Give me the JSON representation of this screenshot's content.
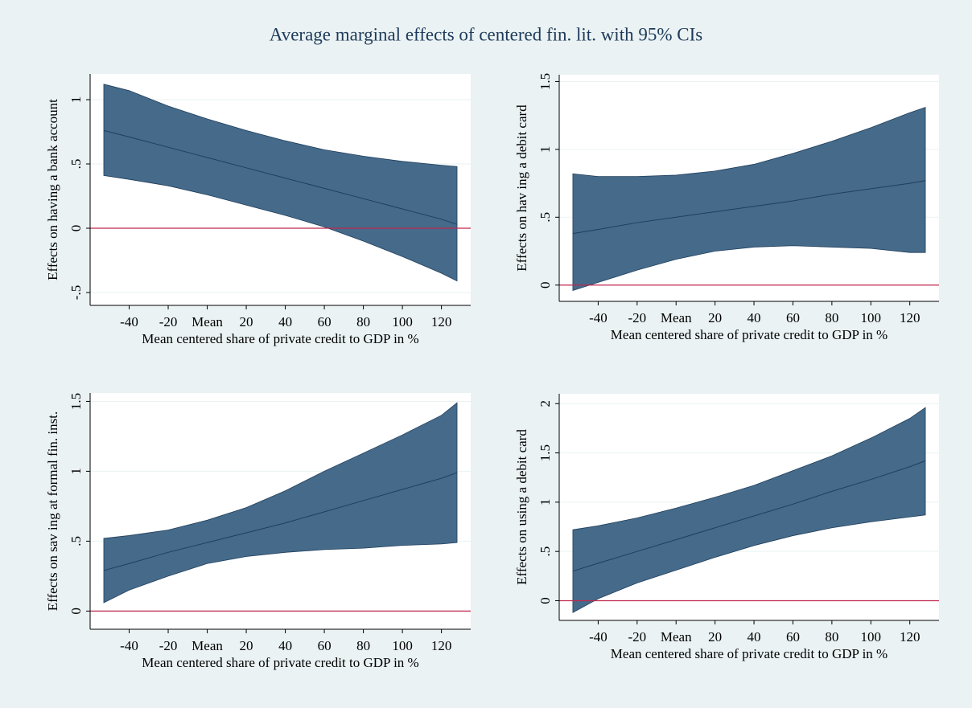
{
  "title": "Average marginal effects of centered fin. lit. with 95% CIs",
  "chart_data": [
    {
      "type": "ci-band",
      "x_label": "Mean centered share of private credit to GDP in %",
      "y_label": "Effects on having a bank account",
      "x": [
        -53,
        -40,
        -20,
        0,
        20,
        40,
        60,
        80,
        100,
        120,
        128
      ],
      "estimate": [
        0.76,
        0.71,
        0.63,
        0.55,
        0.47,
        0.39,
        0.31,
        0.23,
        0.15,
        0.07,
        0.03
      ],
      "upper": [
        1.12,
        1.07,
        0.95,
        0.85,
        0.76,
        0.68,
        0.61,
        0.56,
        0.52,
        0.49,
        0.48
      ],
      "lower": [
        0.41,
        0.38,
        0.33,
        0.26,
        0.18,
        0.1,
        0.01,
        -0.1,
        -0.22,
        -0.35,
        -0.41
      ],
      "xlim": [
        -60,
        135
      ],
      "ylim": [
        -0.6,
        1.2
      ],
      "xticks": [
        -40,
        -20,
        {
          "value": 0,
          "label": "Mean"
        },
        20,
        40,
        60,
        80,
        100,
        120
      ],
      "yticks": [
        {
          "value": -0.5,
          "label": "-.5"
        },
        0,
        {
          "value": 0.5,
          "label": ".5"
        },
        1
      ],
      "reference_line": 0,
      "band_color": "#456a8a",
      "line_color": "#213f5c",
      "reference_color": "#c0284d",
      "grid": true
    },
    {
      "type": "ci-band",
      "x_label": "Mean centered share of private credit to GDP in %",
      "y_label": "Effects on hav ing a debit card",
      "x": [
        -53,
        -40,
        -20,
        0,
        20,
        40,
        60,
        80,
        100,
        120,
        128
      ],
      "estimate": [
        0.38,
        0.41,
        0.46,
        0.5,
        0.54,
        0.58,
        0.62,
        0.67,
        0.71,
        0.75,
        0.77
      ],
      "upper": [
        0.82,
        0.8,
        0.8,
        0.81,
        0.84,
        0.89,
        0.97,
        1.06,
        1.16,
        1.27,
        1.31
      ],
      "lower": [
        -0.04,
        0.02,
        0.11,
        0.19,
        0.25,
        0.28,
        0.29,
        0.28,
        0.27,
        0.24,
        0.24
      ],
      "xlim": [
        -60,
        135
      ],
      "ylim": [
        -0.12,
        1.55
      ],
      "xticks": [
        -40,
        -20,
        {
          "value": 0,
          "label": "Mean"
        },
        20,
        40,
        60,
        80,
        100,
        120
      ],
      "yticks": [
        0,
        {
          "value": 0.5,
          "label": ".5"
        },
        1,
        1.5
      ],
      "reference_line": 0,
      "band_color": "#456a8a",
      "line_color": "#213f5c",
      "reference_color": "#c0284d",
      "grid": true
    },
    {
      "type": "ci-band",
      "x_label": "Mean centered share of private credit to GDP in %",
      "y_label": "Effects on sav ing at formal fin. inst.",
      "x": [
        -53,
        -40,
        -20,
        0,
        20,
        40,
        60,
        80,
        100,
        120,
        128
      ],
      "estimate": [
        0.29,
        0.34,
        0.42,
        0.49,
        0.56,
        0.63,
        0.71,
        0.79,
        0.87,
        0.95,
        0.99
      ],
      "upper": [
        0.52,
        0.54,
        0.58,
        0.65,
        0.74,
        0.86,
        1.0,
        1.13,
        1.26,
        1.4,
        1.49
      ],
      "lower": [
        0.06,
        0.15,
        0.25,
        0.34,
        0.39,
        0.42,
        0.44,
        0.45,
        0.47,
        0.48,
        0.49
      ],
      "xlim": [
        -60,
        135
      ],
      "ylim": [
        -0.13,
        1.56
      ],
      "xticks": [
        -40,
        -20,
        {
          "value": 0,
          "label": "Mean"
        },
        20,
        40,
        60,
        80,
        100,
        120
      ],
      "yticks": [
        0,
        {
          "value": 0.5,
          "label": ".5"
        },
        1,
        1.5
      ],
      "reference_line": 0,
      "band_color": "#456a8a",
      "line_color": "#213f5c",
      "reference_color": "#c0284d",
      "grid": true
    },
    {
      "type": "ci-band",
      "x_label": "Mean centered share of private credit to GDP in %",
      "y_label": "Effects on using a debit card",
      "x": [
        -53,
        -40,
        -20,
        0,
        20,
        40,
        60,
        80,
        100,
        120,
        128
      ],
      "estimate": [
        0.3,
        0.38,
        0.5,
        0.62,
        0.74,
        0.86,
        0.98,
        1.11,
        1.23,
        1.36,
        1.42
      ],
      "upper": [
        0.72,
        0.76,
        0.84,
        0.94,
        1.05,
        1.17,
        1.32,
        1.47,
        1.65,
        1.85,
        1.96
      ],
      "lower": [
        -0.12,
        0.02,
        0.18,
        0.31,
        0.44,
        0.56,
        0.66,
        0.74,
        0.8,
        0.85,
        0.87
      ],
      "xlim": [
        -60,
        135
      ],
      "ylim": [
        -0.2,
        2.1
      ],
      "xticks": [
        -40,
        -20,
        {
          "value": 0,
          "label": "Mean"
        },
        20,
        40,
        60,
        80,
        100,
        120
      ],
      "yticks": [
        0,
        {
          "value": 0.5,
          "label": ".5"
        },
        1,
        1.5,
        2
      ],
      "reference_line": 0,
      "band_color": "#456a8a",
      "line_color": "#213f5c",
      "reference_color": "#c0284d",
      "grid": true
    }
  ]
}
